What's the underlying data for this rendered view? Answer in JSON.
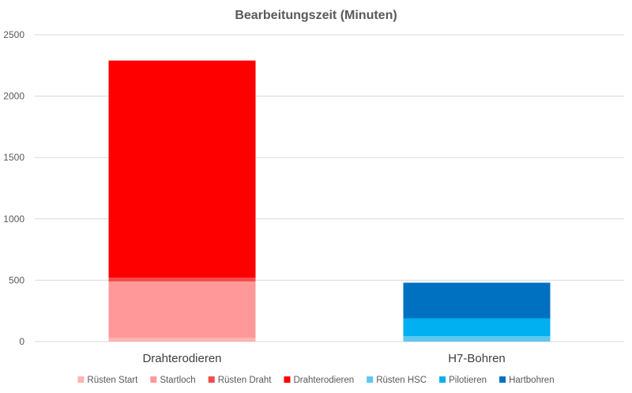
{
  "chart_data": {
    "type": "bar",
    "stacked": true,
    "title": "Bearbeitungszeit (Minuten)",
    "categories": [
      "Drahterodieren",
      "H7-Bohren"
    ],
    "ylim": [
      0,
      2500
    ],
    "yticks": [
      0,
      500,
      1000,
      1500,
      2000,
      2500
    ],
    "grid": true,
    "legend_position": "bottom",
    "series": [
      {
        "name": "Rüsten Start",
        "color": "#ffb3b3",
        "values": [
          30,
          0
        ]
      },
      {
        "name": "Startloch",
        "color": "#ff9999",
        "values": [
          460,
          0
        ]
      },
      {
        "name": "Rüsten Draht",
        "color": "#f24c4c",
        "values": [
          30,
          0
        ]
      },
      {
        "name": "Drahterodieren",
        "color": "#ff0000",
        "values": [
          1770,
          0
        ]
      },
      {
        "name": "Rüsten HSC",
        "color": "#5bc8f0",
        "values": [
          0,
          45
        ]
      },
      {
        "name": "Pilotieren",
        "color": "#00b0f0",
        "values": [
          0,
          145
        ]
      },
      {
        "name": "Hartbohren",
        "color": "#0070c0",
        "values": [
          0,
          290
        ]
      }
    ]
  }
}
